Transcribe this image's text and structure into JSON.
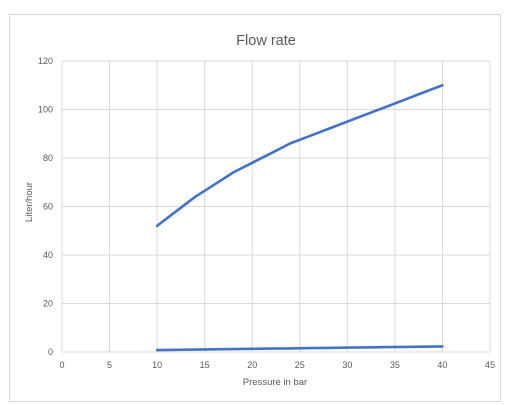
{
  "chart_data": {
    "type": "line",
    "title": "Flow rate",
    "xlabel": "Pressure in bar",
    "ylabel": "Liter/hour",
    "xlim": [
      0,
      45
    ],
    "ylim": [
      0,
      120
    ],
    "xticks": [
      0,
      5,
      10,
      15,
      20,
      25,
      30,
      35,
      40,
      45
    ],
    "yticks": [
      0,
      20,
      40,
      60,
      80,
      100,
      120
    ],
    "grid": true,
    "legend": "none",
    "series_color": "#4472c4",
    "grid_color": "#d9d9d9",
    "series": [
      {
        "x": [
          10,
          12,
          14,
          16,
          18,
          20,
          22,
          24,
          26,
          28,
          30,
          32,
          34,
          36,
          38,
          40
        ],
        "values": [
          52,
          58,
          64,
          69,
          74,
          78,
          82,
          86,
          89,
          92,
          95,
          98,
          101,
          104,
          107,
          110
        ]
      },
      {
        "x": [
          10,
          12,
          14,
          16,
          18,
          20,
          22,
          24,
          26,
          28,
          30,
          32,
          34,
          36,
          38,
          40
        ],
        "values": [
          0.8,
          0.9,
          1.0,
          1.1,
          1.2,
          1.3,
          1.4,
          1.5,
          1.6,
          1.7,
          1.8,
          1.9,
          2.0,
          2.1,
          2.2,
          2.3
        ]
      }
    ]
  }
}
